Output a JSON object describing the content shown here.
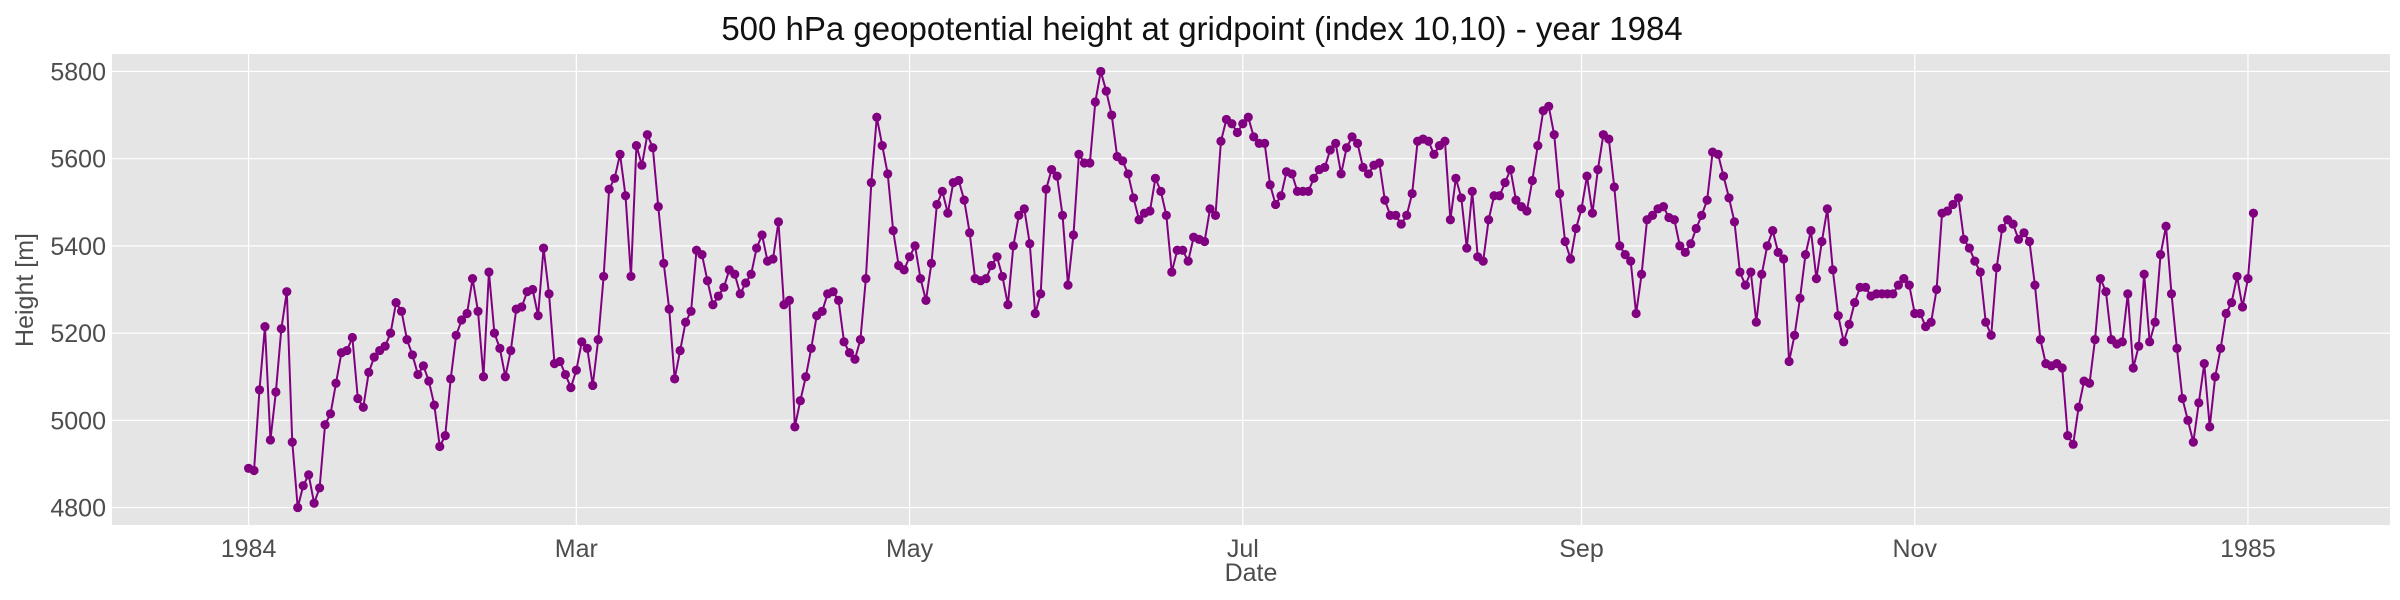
{
  "chart_data": {
    "type": "line",
    "title": "500 hPa geopotential height at gridpoint (index 10,10) - year 1984",
    "xlabel": "Date",
    "ylabel": "Height [m]",
    "xlim": [
      "1983-12-07",
      "1985-01-27"
    ],
    "ylim": [
      4760,
      5840
    ],
    "x_ticks": [
      {
        "date": "1984-01-01",
        "label": "1984"
      },
      {
        "date": "1984-03-01",
        "label": "Mar"
      },
      {
        "date": "1984-05-01",
        "label": "May"
      },
      {
        "date": "1984-07-01",
        "label": "Jul"
      },
      {
        "date": "1984-09-01",
        "label": "Sep"
      },
      {
        "date": "1984-11-01",
        "label": "Nov"
      },
      {
        "date": "1985-01-01",
        "label": "1985"
      }
    ],
    "y_ticks": [
      4800,
      5000,
      5200,
      5400,
      5600,
      5800
    ],
    "grid": true,
    "marker": "circle",
    "colors": {
      "line": "#800080",
      "background": "#e5e5e5",
      "grid": "#ffffff"
    },
    "series": [
      {
        "name": "",
        "x_start": "1984-01-01",
        "step_days": 1,
        "values": [
          4890,
          4885,
          5070,
          5215,
          4955,
          5065,
          5210,
          5295,
          4950,
          4800,
          4850,
          4875,
          4810,
          4845,
          4990,
          5015,
          5085,
          5155,
          5160,
          5190,
          5050,
          5030,
          5110,
          5145,
          5160,
          5170,
          5200,
          5270,
          5250,
          5185,
          5150,
          5105,
          5125,
          5090,
          5035,
          4940,
          4965,
          5095,
          5195,
          5230,
          5245,
          5325,
          5250,
          5100,
          5340,
          5200,
          5165,
          5100,
          5160,
          5255,
          5260,
          5295,
          5300,
          5240,
          5395,
          5290,
          5130,
          5135,
          5105,
          5075,
          5115,
          5180,
          5165,
          5080,
          5185,
          5330,
          5530,
          5555,
          5610,
          5515,
          5330,
          5630,
          5585,
          5655,
          5625,
          5490,
          5360,
          5255,
          5095,
          5160,
          5225,
          5250,
          5390,
          5380,
          5320,
          5265,
          5285,
          5305,
          5345,
          5335,
          5290,
          5315,
          5335,
          5395,
          5425,
          5365,
          5370,
          5455,
          5265,
          5275,
          4985,
          5045,
          5100,
          5165,
          5240,
          5250,
          5290,
          5295,
          5275,
          5180,
          5155,
          5140,
          5185,
          5325,
          5545,
          5695,
          5630,
          5565,
          5435,
          5355,
          5345,
          5375,
          5400,
          5325,
          5275,
          5360,
          5495,
          5525,
          5475,
          5545,
          5550,
          5505,
          5430,
          5325,
          5320,
          5325,
          5355,
          5375,
          5330,
          5265,
          5400,
          5470,
          5485,
          5405,
          5245,
          5290,
          5530,
          5575,
          5560,
          5470,
          5310,
          5425,
          5610,
          5590,
          5590,
          5730,
          5800,
          5755,
          5700,
          5605,
          5595,
          5565,
          5510,
          5460,
          5475,
          5480,
          5555,
          5525,
          5470,
          5340,
          5390,
          5390,
          5365,
          5420,
          5415,
          5410,
          5485,
          5470,
          5640,
          5690,
          5680,
          5660,
          5680,
          5695,
          5650,
          5635,
          5635,
          5540,
          5495,
          5515,
          5570,
          5565,
          5525,
          5525,
          5525,
          5555,
          5575,
          5580,
          5620,
          5635,
          5565,
          5625,
          5650,
          5635,
          5580,
          5565,
          5585,
          5590,
          5505,
          5470,
          5470,
          5450,
          5470,
          5520,
          5640,
          5645,
          5640,
          5610,
          5630,
          5640,
          5460,
          5555,
          5510,
          5395,
          5525,
          5375,
          5365,
          5460,
          5515,
          5515,
          5545,
          5575,
          5505,
          5490,
          5480,
          5550,
          5630,
          5710,
          5720,
          5655,
          5520,
          5410,
          5370,
          5440,
          5485,
          5560,
          5475,
          5575,
          5655,
          5645,
          5535,
          5400,
          5380,
          5365,
          5245,
          5335,
          5460,
          5470,
          5485,
          5490,
          5465,
          5460,
          5400,
          5385,
          5405,
          5440,
          5470,
          5505,
          5615,
          5610,
          5560,
          5510,
          5455,
          5340,
          5310,
          5340,
          5225,
          5335,
          5400,
          5435,
          5385,
          5370,
          5135,
          5195,
          5280,
          5380,
          5435,
          5325,
          5410,
          5485,
          5345,
          5240,
          5180,
          5220,
          5270,
          5305,
          5305,
          5285,
          5290,
          5290,
          5290,
          5290,
          5310,
          5325,
          5310,
          5245,
          5245,
          5215,
          5225,
          5300,
          5475,
          5480,
          5495,
          5510,
          5415,
          5395,
          5365,
          5340,
          5225,
          5195,
          5350,
          5440,
          5460,
          5450,
          5415,
          5430,
          5410,
          5310,
          5185,
          5130,
          5125,
          5130,
          5120,
          4965,
          4945,
          5030,
          5090,
          5085,
          5185,
          5325,
          5295,
          5185,
          5175,
          5180,
          5290,
          5120,
          5170,
          5335,
          5180,
          5225,
          5380,
          5445,
          5290,
          5165,
          5050,
          5000,
          4950,
          5040,
          5130,
          4985,
          5100,
          5165,
          5245,
          5270,
          5330,
          5260,
          5325,
          5475
        ]
      }
    ]
  }
}
